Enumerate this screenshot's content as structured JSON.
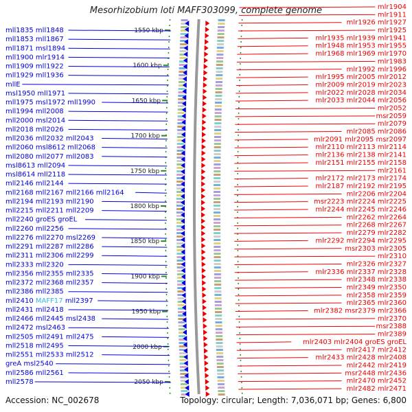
{
  "title": "Mesorhizobium loti MAFF303099, complete genome",
  "footer": {
    "accession": "Accession: NC_002678",
    "summary": "Topology: circular; Length: 7,036,071 bp; Genes: 6,800"
  },
  "colors": {
    "minus_strand": "#0000dd",
    "plus_strand": "#ee0000",
    "highlight": "#33b5e5",
    "scale": "#228822"
  },
  "scale_labels": [
    "1550 kbp",
    "1600 kbp",
    "1650 kbp",
    "1700 kbp",
    "1750 kbp",
    "1800 kbp",
    "1850 kbp",
    "1900 kbp",
    "1950 kbp",
    "2000 kbp",
    "2050 kbp"
  ],
  "left_genes": [
    [
      "mll1835",
      "mll1848"
    ],
    [
      "mll1853",
      "mll1867"
    ],
    [
      "mll1871",
      "msl1894"
    ],
    [
      "mll1900",
      "mlr1914"
    ],
    [
      "mll1909",
      "mll1922"
    ],
    [
      "mll1929",
      "mll1936"
    ],
    [
      "mllE"
    ],
    [
      "msl1950",
      "mll1971"
    ],
    [
      "mll1975",
      "msl1972",
      "mll1990"
    ],
    [
      "mll1994",
      "mll2008"
    ],
    [
      "mll2000",
      "msl2014"
    ],
    [
      "mll2018",
      "mll2026"
    ],
    [
      "mll2036",
      "mll2032",
      "mll2043"
    ],
    [
      "mll2060",
      "msl8612",
      "mll2068"
    ],
    [
      "mll2080",
      "mll2077",
      "mll2083"
    ],
    [
      "msl8613",
      "mll2094"
    ],
    [
      "msl8614",
      "mll2118"
    ],
    [
      "mll2146",
      "mll2144"
    ],
    [
      "mll2168",
      "mll2167",
      "mll2166",
      "mll2164"
    ],
    [
      "mll2194",
      "mll2193",
      "mll2190"
    ],
    [
      "mll2215",
      "mll2211",
      "mll2209"
    ],
    [
      "mll2240",
      "groES",
      "groEL"
    ],
    [
      "mll2260",
      "mll2256"
    ],
    [
      "mll2276",
      "mll2270",
      "msl2269"
    ],
    [
      "mll2291",
      "mll2287",
      "mll2286"
    ],
    [
      "mll2311",
      "mll2306",
      "mll2299"
    ],
    [
      "mll2333",
      "mll2320"
    ],
    [
      "mll2356",
      "mll2355",
      "mll2335"
    ],
    [
      "mll2372",
      "mll2368",
      "mll2357"
    ],
    [
      "mll2386",
      "mll2385"
    ],
    [
      "mll2410",
      "MAFF17",
      "mll2397"
    ],
    [
      "mll2431",
      "mll2418"
    ],
    [
      "mll2466",
      "mll2445",
      "msl2438"
    ],
    [
      "mll2472",
      "msl2463"
    ],
    [
      "mll2505",
      "mll2491",
      "mll2475"
    ],
    [
      "mll2518",
      "mll2495"
    ],
    [
      "mll2551",
      "mll2533",
      "mll2512"
    ],
    [
      "greA",
      "msl2540"
    ],
    [
      "mll2586",
      "mll2561"
    ],
    [
      "mll2578"
    ]
  ],
  "right_genes": [
    [
      "mlr1904"
    ],
    [
      "mlr1911"
    ],
    [
      "mlr1926",
      "mlr1927"
    ],
    [
      "mlr1925"
    ],
    [
      "mlr1935",
      "mlr1939",
      "mlr1941"
    ],
    [
      "mlr1948",
      "mlr1953",
      "mlr1955"
    ],
    [
      "mlr1968",
      "mlr1969",
      "mlr1970"
    ],
    [
      "mlr1983"
    ],
    [
      "mlr1992",
      "mlr1996"
    ],
    [
      "mlr1995",
      "mlr2005",
      "mlr2012"
    ],
    [
      "mlr2009",
      "mlr2019",
      "mlr2023"
    ],
    [
      "mlr2022",
      "mlr2028",
      "mlr2034"
    ],
    [
      "mlr2033",
      "mlr2044",
      "mlr2056"
    ],
    [
      "mlr2052"
    ],
    [
      "msr2059"
    ],
    [
      "mlr2079"
    ],
    [
      "mlr2085",
      "mlr2086"
    ],
    [
      "mlr2091",
      "mlr2095",
      "msr2097"
    ],
    [
      "mlr2110",
      "mlr2113",
      "mlr2114"
    ],
    [
      "mlr2136",
      "mlr2138",
      "mlr2141"
    ],
    [
      "mlr2151",
      "mlr2155",
      "mlr2158"
    ],
    [
      "mlr2161"
    ],
    [
      "mlr2172",
      "mlr2173",
      "mlr2174"
    ],
    [
      "mlr2187",
      "mlr2192",
      "mlr2195"
    ],
    [
      "mlr2206",
      "mlr2204"
    ],
    [
      "msr2223",
      "mlr2224",
      "mlr2225"
    ],
    [
      "mlr2244",
      "mlr2245",
      "mlr2246"
    ],
    [
      "mlr2262",
      "mlr2264"
    ],
    [
      "mlr2268",
      "mlr2267"
    ],
    [
      "mlr2279",
      "mlr2282"
    ],
    [
      "mlr2292",
      "mlr2294",
      "mlr2295"
    ],
    [
      "msr2303",
      "mlr2305"
    ],
    [
      "mlr2310"
    ],
    [
      "mlr2326",
      "mlr2327"
    ],
    [
      "mlr2336",
      "mlr2337",
      "mlr2328"
    ],
    [
      "mlr2348",
      "mlr2338"
    ],
    [
      "mlr2349",
      "mlr2350"
    ],
    [
      "mlr2358",
      "mlr2359"
    ],
    [
      "mlr2365",
      "mlr2360"
    ],
    [
      "mlr2382",
      "msr2379",
      "mlr2366"
    ],
    [
      "mlr2370"
    ],
    [
      "msr2388"
    ],
    [
      "mlr2389"
    ],
    [
      "mlr2403",
      "mlr2404",
      "groES",
      "groEL"
    ],
    [
      "mlr2417",
      "mlr2412"
    ],
    [
      "mlr2433",
      "mlr2428",
      "mlr2408"
    ],
    [
      "mlr2442",
      "mlr2419"
    ],
    [
      "msr2448",
      "mlr2436"
    ],
    [
      "mlr2470",
      "mlr2452"
    ],
    [
      "mlr2482",
      "mlr2471"
    ]
  ]
}
